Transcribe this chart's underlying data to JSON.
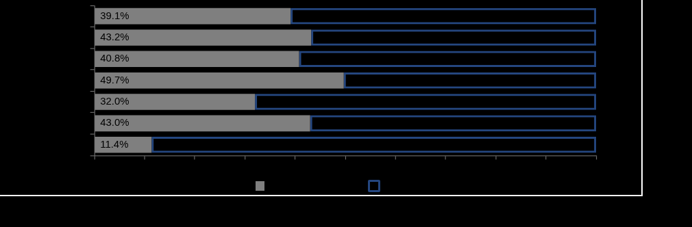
{
  "chart_data": {
    "type": "bar",
    "orientation": "horizontal",
    "stacked": true,
    "categories": [
      null,
      null,
      null,
      null,
      null,
      null,
      null
    ],
    "series": [
      {
        "color": "#7f7f7f",
        "values": [
          39.1,
          43.2,
          40.8,
          49.7,
          32.0,
          43.0,
          11.4
        ],
        "value_labels": [
          "39.1%",
          "43.2%",
          "40.8%",
          "49.7%",
          "32.0%",
          "43.0%",
          "11.4%"
        ]
      },
      {
        "color": "#24467f",
        "values": [
          60.9,
          56.8,
          59.2,
          50.3,
          68.0,
          57.0,
          88.6
        ]
      }
    ],
    "xlim": [
      0,
      100
    ],
    "xticks": [
      {
        "value": 0,
        "label": null
      },
      {
        "value": 10,
        "label": null
      },
      {
        "value": 20,
        "label": null
      },
      {
        "value": 30,
        "label": null
      },
      {
        "value": 40,
        "label": null
      },
      {
        "value": 50,
        "label": null
      },
      {
        "value": 60,
        "label": null
      },
      {
        "value": 70,
        "label": null
      },
      {
        "value": 80,
        "label": null
      },
      {
        "value": 90,
        "label": null
      },
      {
        "value": 100,
        "label": null
      }
    ],
    "tick_labels": false,
    "grid": false
  }
}
